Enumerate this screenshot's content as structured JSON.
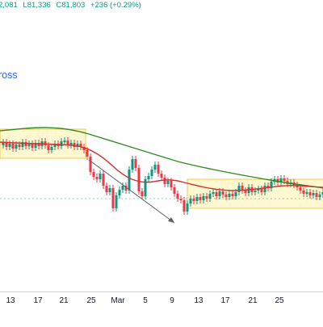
{
  "ohlc": {
    "open_tail": "2,081",
    "low": "L81,336",
    "close": "C81,803",
    "change": "+236 (+0.29%)"
  },
  "indicator_label": "ross",
  "colors": {
    "up": "#089981",
    "down": "#f23645",
    "ma_long": "#2e8b22",
    "ma_short": "#d32f2f",
    "range_fill": "#fff3b0",
    "range_stroke": "#f2c94c",
    "arrow": "#5d606b",
    "accent": "#2962ff"
  },
  "chart_data": {
    "type": "candlestick",
    "x_ticks": [
      "13",
      "17",
      "21",
      "25",
      "Mar",
      "5",
      "9",
      "13",
      "17",
      "21",
      "25"
    ],
    "annotations": [
      "range-box-left",
      "range-box-right",
      "trend-arrow"
    ],
    "series": [
      {
        "name": "",
        "type": "line",
        "color": "#2e8b22"
      },
      {
        "name": "",
        "type": "line",
        "color": "#d32f2f"
      }
    ],
    "grid": false
  }
}
